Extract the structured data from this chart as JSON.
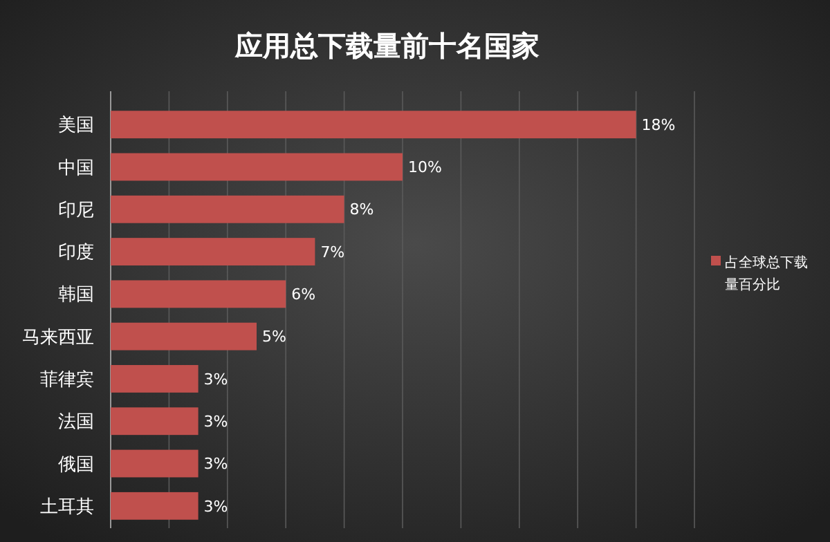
{
  "chart_data": {
    "type": "bar",
    "orientation": "horizontal",
    "title": "应用总下载量前十名国家",
    "categories": [
      "美国",
      "中国",
      "印尼",
      "印度",
      "韩国",
      "马来西亚",
      "菲律宾",
      "法国",
      "俄国",
      "土耳其"
    ],
    "series": [
      {
        "name": "占全球总下载量百分比",
        "color": "#c0504d",
        "values": [
          18,
          10,
          8,
          7,
          6,
          5,
          3,
          3,
          3,
          3
        ],
        "value_labels": [
          "18%",
          "10%",
          "8%",
          "7%",
          "6%",
          "5%",
          "3%",
          "3%",
          "3%",
          "3%"
        ]
      }
    ],
    "xlim": [
      0,
      20
    ],
    "xticks": [
      {
        "value": 0,
        "label": null
      },
      {
        "value": 2,
        "label": null
      },
      {
        "value": 4,
        "label": null
      },
      {
        "value": 6,
        "label": null
      },
      {
        "value": 8,
        "label": null
      },
      {
        "value": 10,
        "label": null
      },
      {
        "value": 12,
        "label": null
      },
      {
        "value": 14,
        "label": null
      },
      {
        "value": 16,
        "label": null
      },
      {
        "value": 18,
        "label": null
      },
      {
        "value": 20,
        "label": null
      }
    ],
    "grid": "x",
    "tick_labels": "y",
    "legend": "right"
  }
}
